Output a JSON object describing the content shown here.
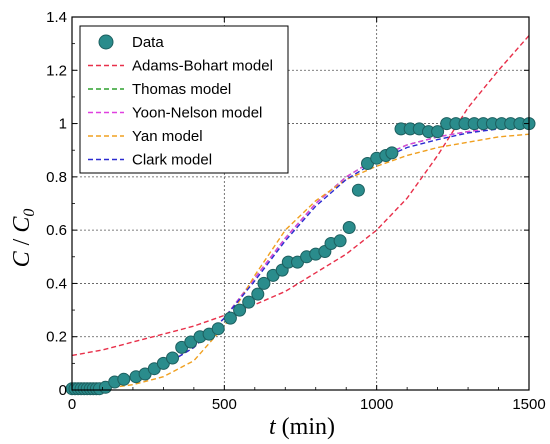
{
  "chart_data": {
    "type": "scatter",
    "xlabel": {
      "italic": "t",
      "rest": " (min)"
    },
    "ylabel": {
      "c": "C",
      "sep": " / ",
      "c0": "C",
      "sub": "0"
    },
    "xlim": [
      0,
      1500
    ],
    "ylim": [
      0,
      1.4
    ],
    "xticks": [
      0,
      500,
      1000,
      1500
    ],
    "yticks": [
      0,
      0.2,
      0.4,
      0.6,
      0.8,
      1,
      1.2,
      1.4
    ],
    "grid": true,
    "legend_position": "top-left",
    "data_series": {
      "name": "Data",
      "color": "#2a8c8c",
      "edge": "#1d5f5f",
      "points": [
        [
          0,
          0.005
        ],
        [
          10,
          0.005
        ],
        [
          20,
          0.005
        ],
        [
          30,
          0.005
        ],
        [
          40,
          0.005
        ],
        [
          50,
          0.005
        ],
        [
          60,
          0.005
        ],
        [
          70,
          0.005
        ],
        [
          80,
          0.005
        ],
        [
          90,
          0.005
        ],
        [
          110,
          0.01
        ],
        [
          140,
          0.03
        ],
        [
          170,
          0.04
        ],
        [
          210,
          0.05
        ],
        [
          240,
          0.06
        ],
        [
          270,
          0.08
        ],
        [
          300,
          0.1
        ],
        [
          330,
          0.12
        ],
        [
          360,
          0.16
        ],
        [
          390,
          0.18
        ],
        [
          420,
          0.2
        ],
        [
          450,
          0.21
        ],
        [
          480,
          0.23
        ],
        [
          520,
          0.27
        ],
        [
          550,
          0.3
        ],
        [
          580,
          0.33
        ],
        [
          610,
          0.36
        ],
        [
          630,
          0.4
        ],
        [
          660,
          0.43
        ],
        [
          690,
          0.45
        ],
        [
          710,
          0.48
        ],
        [
          740,
          0.48
        ],
        [
          770,
          0.5
        ],
        [
          800,
          0.51
        ],
        [
          830,
          0.52
        ],
        [
          850,
          0.55
        ],
        [
          880,
          0.56
        ],
        [
          910,
          0.61
        ],
        [
          940,
          0.75
        ],
        [
          970,
          0.85
        ],
        [
          1000,
          0.87
        ],
        [
          1030,
          0.88
        ],
        [
          1050,
          0.89
        ],
        [
          1080,
          0.98
        ],
        [
          1110,
          0.98
        ],
        [
          1140,
          0.98
        ],
        [
          1170,
          0.97
        ],
        [
          1200,
          0.97
        ],
        [
          1230,
          1.0
        ],
        [
          1260,
          1.0
        ],
        [
          1290,
          1.0
        ],
        [
          1320,
          1.0
        ],
        [
          1350,
          1.0
        ],
        [
          1380,
          1.0
        ],
        [
          1410,
          1.0
        ],
        [
          1440,
          1.0
        ],
        [
          1470,
          1.0
        ],
        [
          1500,
          1.0
        ]
      ]
    },
    "model_series": [
      {
        "name": "Adams-Bohart model",
        "color": "#e8304a",
        "points": [
          [
            0,
            0.13
          ],
          [
            100,
            0.15
          ],
          [
            200,
            0.18
          ],
          [
            300,
            0.21
          ],
          [
            400,
            0.24
          ],
          [
            500,
            0.28
          ],
          [
            600,
            0.32
          ],
          [
            700,
            0.37
          ],
          [
            800,
            0.44
          ],
          [
            900,
            0.51
          ],
          [
            1000,
            0.6
          ],
          [
            1100,
            0.72
          ],
          [
            1200,
            0.88
          ],
          [
            1300,
            1.06
          ],
          [
            1400,
            1.2
          ],
          [
            1500,
            1.33
          ]
        ]
      },
      {
        "name": "Thomas model",
        "color": "#2ea02e",
        "points": [
          [
            0,
            0.01
          ],
          [
            100,
            0.02
          ],
          [
            200,
            0.05
          ],
          [
            300,
            0.09
          ],
          [
            400,
            0.16
          ],
          [
            500,
            0.27
          ],
          [
            600,
            0.42
          ],
          [
            700,
            0.57
          ],
          [
            800,
            0.7
          ],
          [
            900,
            0.8
          ],
          [
            1000,
            0.87
          ],
          [
            1100,
            0.92
          ],
          [
            1200,
            0.95
          ],
          [
            1300,
            0.97
          ],
          [
            1400,
            0.985
          ],
          [
            1500,
            0.99
          ]
        ]
      },
      {
        "name": "Yoon-Nelson model",
        "color": "#e040e0",
        "points": [
          [
            0,
            0.01
          ],
          [
            100,
            0.02
          ],
          [
            200,
            0.05
          ],
          [
            300,
            0.09
          ],
          [
            400,
            0.16
          ],
          [
            500,
            0.27
          ],
          [
            600,
            0.42
          ],
          [
            700,
            0.57
          ],
          [
            800,
            0.7
          ],
          [
            900,
            0.8
          ],
          [
            1000,
            0.87
          ],
          [
            1100,
            0.92
          ],
          [
            1200,
            0.95
          ],
          [
            1300,
            0.97
          ],
          [
            1400,
            0.985
          ],
          [
            1500,
            0.99
          ]
        ]
      },
      {
        "name": "Yan model",
        "color": "#f0a020",
        "points": [
          [
            0,
            0.0
          ],
          [
            100,
            0.005
          ],
          [
            200,
            0.02
          ],
          [
            300,
            0.05
          ],
          [
            400,
            0.11
          ],
          [
            500,
            0.24
          ],
          [
            600,
            0.43
          ],
          [
            700,
            0.6
          ],
          [
            800,
            0.71
          ],
          [
            900,
            0.79
          ],
          [
            1000,
            0.84
          ],
          [
            1100,
            0.88
          ],
          [
            1200,
            0.91
          ],
          [
            1300,
            0.93
          ],
          [
            1400,
            0.95
          ],
          [
            1500,
            0.96
          ]
        ]
      },
      {
        "name": "Clark model",
        "color": "#2b2bd0",
        "points": [
          [
            0,
            0.01
          ],
          [
            100,
            0.02
          ],
          [
            200,
            0.05
          ],
          [
            300,
            0.09
          ],
          [
            400,
            0.16
          ],
          [
            500,
            0.27
          ],
          [
            600,
            0.41
          ],
          [
            700,
            0.56
          ],
          [
            800,
            0.69
          ],
          [
            900,
            0.79
          ],
          [
            1000,
            0.86
          ],
          [
            1100,
            0.91
          ],
          [
            1200,
            0.94
          ],
          [
            1300,
            0.965
          ],
          [
            1400,
            0.98
          ],
          [
            1500,
            0.99
          ]
        ]
      }
    ]
  }
}
